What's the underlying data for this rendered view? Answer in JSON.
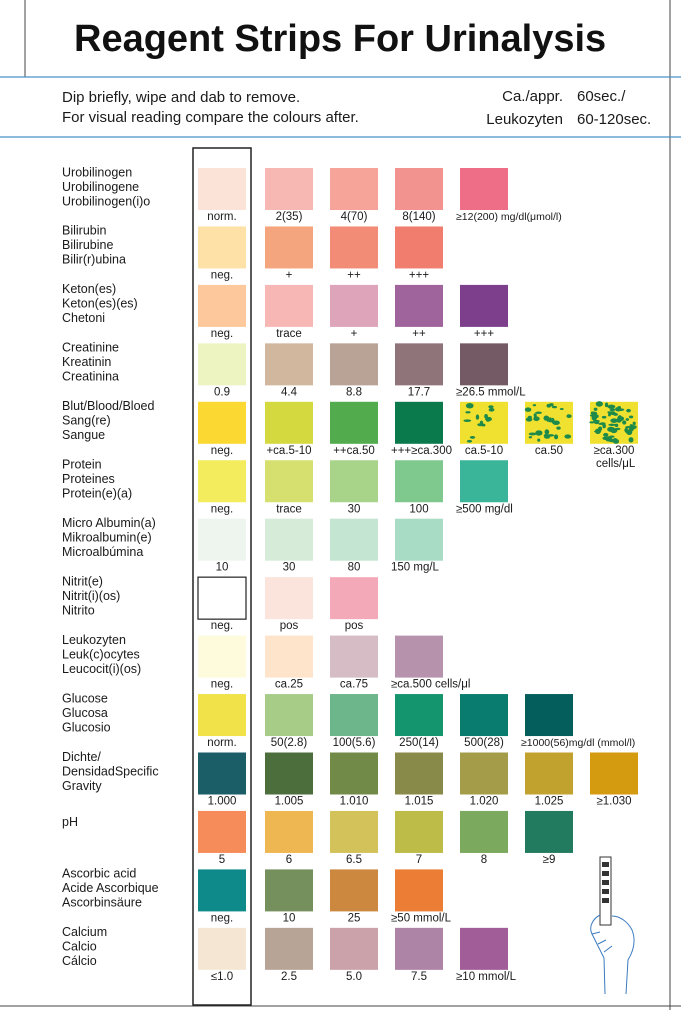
{
  "header": {
    "title": "Reagent Strips For Urinalysis",
    "instructions": [
      "Dip briefly, wipe and dab to remove.",
      "For visual reading compare the colours after."
    ],
    "timing": [
      [
        "Ca./appr.",
        "60sec./"
      ],
      [
        "Leukozyten",
        "60-120sec."
      ]
    ]
  },
  "rows": [
    {
      "names": [
        "Urobilinogen",
        "Urobilinogene",
        "Urobilinogen(i)o"
      ],
      "swatches": [
        {
          "color": "#fbe3d8",
          "label": "norm."
        },
        {
          "color": "#f7b8b4",
          "label": "2(35)"
        },
        {
          "color": "#f6a49a",
          "label": "4(70)"
        },
        {
          "color": "#f2938f",
          "label": "8(140)"
        },
        {
          "color": "#ee6e88",
          "label": "≥12(200) mg/dl(μmol/l)"
        }
      ]
    },
    {
      "names": [
        "Bilirubin",
        "Bilirubine",
        "Bilir(r)ubina"
      ],
      "swatches": [
        {
          "color": "#fde1a6",
          "label": "neg."
        },
        {
          "color": "#f5a57e",
          "label": "+"
        },
        {
          "color": "#f38c76",
          "label": "++"
        },
        {
          "color": "#f07d6e",
          "label": "+++"
        }
      ]
    },
    {
      "names": [
        "Keton(es)",
        "Keton(es)(es)",
        "Chetoni"
      ],
      "swatches": [
        {
          "color": "#fdc89c",
          "label": "neg."
        },
        {
          "color": "#f7b8b5",
          "label": "trace"
        },
        {
          "color": "#dea4ba",
          "label": "+"
        },
        {
          "color": "#a0649c",
          "label": "++"
        },
        {
          "color": "#7d3f8c",
          "label": "+++"
        }
      ]
    },
    {
      "names": [
        "Creatinine",
        "Kreatinin",
        "Creatinina"
      ],
      "swatches": [
        {
          "color": "#eef3c2",
          "label": "0.9"
        },
        {
          "color": "#d0b79d",
          "label": "4.4"
        },
        {
          "color": "#b8a396",
          "label": "8.8"
        },
        {
          "color": "#8f7479",
          "label": "17.7"
        },
        {
          "color": "#735a65",
          "label": "≥26.5 mmol/L"
        }
      ]
    },
    {
      "names": [
        "Blut/Blood/Bloed",
        "Sang(re)",
        "Sangue"
      ],
      "swatches": [
        {
          "color": "#fbd832",
          "label": "neg."
        },
        {
          "color": "#d3d93e",
          "label": "+ca.5-10"
        },
        {
          "color": "#52ab4c",
          "label": "++ca.50"
        },
        {
          "color": "#0a7a4c",
          "label": "+++≥ca.300"
        },
        {
          "color": "#f0e030",
          "spots": "#1e8a4a",
          "label": "ca.5-10"
        },
        {
          "color": "#f0e030",
          "spots": "#1e8a4a",
          "label": "ca.50"
        },
        {
          "color": "#f0e030",
          "spots": "#1e8a4a",
          "label": "≥ca.300",
          "unit": "cells/μL"
        }
      ]
    },
    {
      "names": [
        "Protein",
        "Proteines",
        "Protein(e)(a)"
      ],
      "swatches": [
        {
          "color": "#f3ec5c",
          "label": "neg."
        },
        {
          "color": "#d6e06e",
          "label": "trace"
        },
        {
          "color": "#a8d48a",
          "label": "30"
        },
        {
          "color": "#7fc88e",
          "label": "100"
        },
        {
          "color": "#3bb59a",
          "label": "≥500 mg/dl"
        }
      ]
    },
    {
      "names": [
        "Micro Albumin(a)",
        "Mikroalbumin(e)",
        "Microalbúmina"
      ],
      "swatches": [
        {
          "color": "#eef5ee",
          "label": "10"
        },
        {
          "color": "#d6ecd8",
          "label": "30"
        },
        {
          "color": "#c4e5d2",
          "label": "80"
        },
        {
          "color": "#a9dcc5",
          "label": "150  mg/L"
        }
      ]
    },
    {
      "names": [
        "Nitrit(e)",
        "Nitrit(i)(os)",
        "Nitrito"
      ],
      "swatches": [
        {
          "color": "#ffffff",
          "label": "neg."
        },
        {
          "color": "#fbe4dc",
          "label": "pos"
        },
        {
          "color": "#f4a9b8",
          "label": "pos"
        }
      ]
    },
    {
      "names": [
        "Leukozyten",
        "Leuk(c)ocytes",
        "Leucocit(i)(os)"
      ],
      "swatches": [
        {
          "color": "#fefbdc",
          "label": "neg."
        },
        {
          "color": "#fde4cb",
          "label": "ca.25"
        },
        {
          "color": "#d6bcc5",
          "label": "ca.75"
        },
        {
          "color": "#b692ad",
          "label": "≥ca.500  cells/μl"
        }
      ]
    },
    {
      "names": [
        "Glucose",
        "Glucosa",
        "Glucosio"
      ],
      "swatches": [
        {
          "color": "#f1e24a",
          "label": "norm."
        },
        {
          "color": "#a6cc88",
          "label": "50(2.8)"
        },
        {
          "color": "#6db58a",
          "label": "100(5.6)"
        },
        {
          "color": "#14956e",
          "label": "250(14)"
        },
        {
          "color": "#0a7b6f",
          "label": "500(28)"
        },
        {
          "color": "#045e5c",
          "label": "≥1000(56)mg/dl (mmol/l)"
        }
      ]
    },
    {
      "names": [
        "Dichte/",
        "DensidadSpecific",
        "Gravity"
      ],
      "swatches": [
        {
          "color": "#1b5e68",
          "label": "1.000"
        },
        {
          "color": "#4c6d3c",
          "label": "1.005"
        },
        {
          "color": "#728a47",
          "label": "1.010"
        },
        {
          "color": "#888a4a",
          "label": "1.015"
        },
        {
          "color": "#a49c48",
          "label": "1.020"
        },
        {
          "color": "#c2a22e",
          "label": "1.025"
        },
        {
          "color": "#d49a10",
          "label": "≥1.030"
        }
      ]
    },
    {
      "names": [
        "pH"
      ],
      "swatches": [
        {
          "color": "#f58c5a",
          "label": "5"
        },
        {
          "color": "#efb752",
          "label": "6"
        },
        {
          "color": "#d3c25a",
          "label": "6.5"
        },
        {
          "color": "#bdbc48",
          "label": "7"
        },
        {
          "color": "#7ba95e",
          "label": "8"
        },
        {
          "color": "#227b5e",
          "label": "≥9"
        }
      ]
    },
    {
      "names": [
        "Ascorbic acid",
        "Acide Ascorbique",
        "Ascorbinsäure"
      ],
      "swatches": [
        {
          "color": "#0e8a8a",
          "label": "neg."
        },
        {
          "color": "#76905d",
          "label": "10"
        },
        {
          "color": "#cc883e",
          "label": "25"
        },
        {
          "color": "#eb7d34",
          "label": "≥50  mmol/L"
        }
      ]
    },
    {
      "names": [
        "Calcium",
        "Calcio",
        "Cálcio"
      ],
      "swatches": [
        {
          "color": "#f4e6d2",
          "label": "≤1.0"
        },
        {
          "color": "#b7a497",
          "label": "2.5"
        },
        {
          "color": "#cca2aa",
          "label": "5.0"
        },
        {
          "color": "#ae84a6",
          "label": "7.5"
        },
        {
          "color": "#a05d98",
          "label": "≥10 mmol/L"
        }
      ]
    }
  ]
}
